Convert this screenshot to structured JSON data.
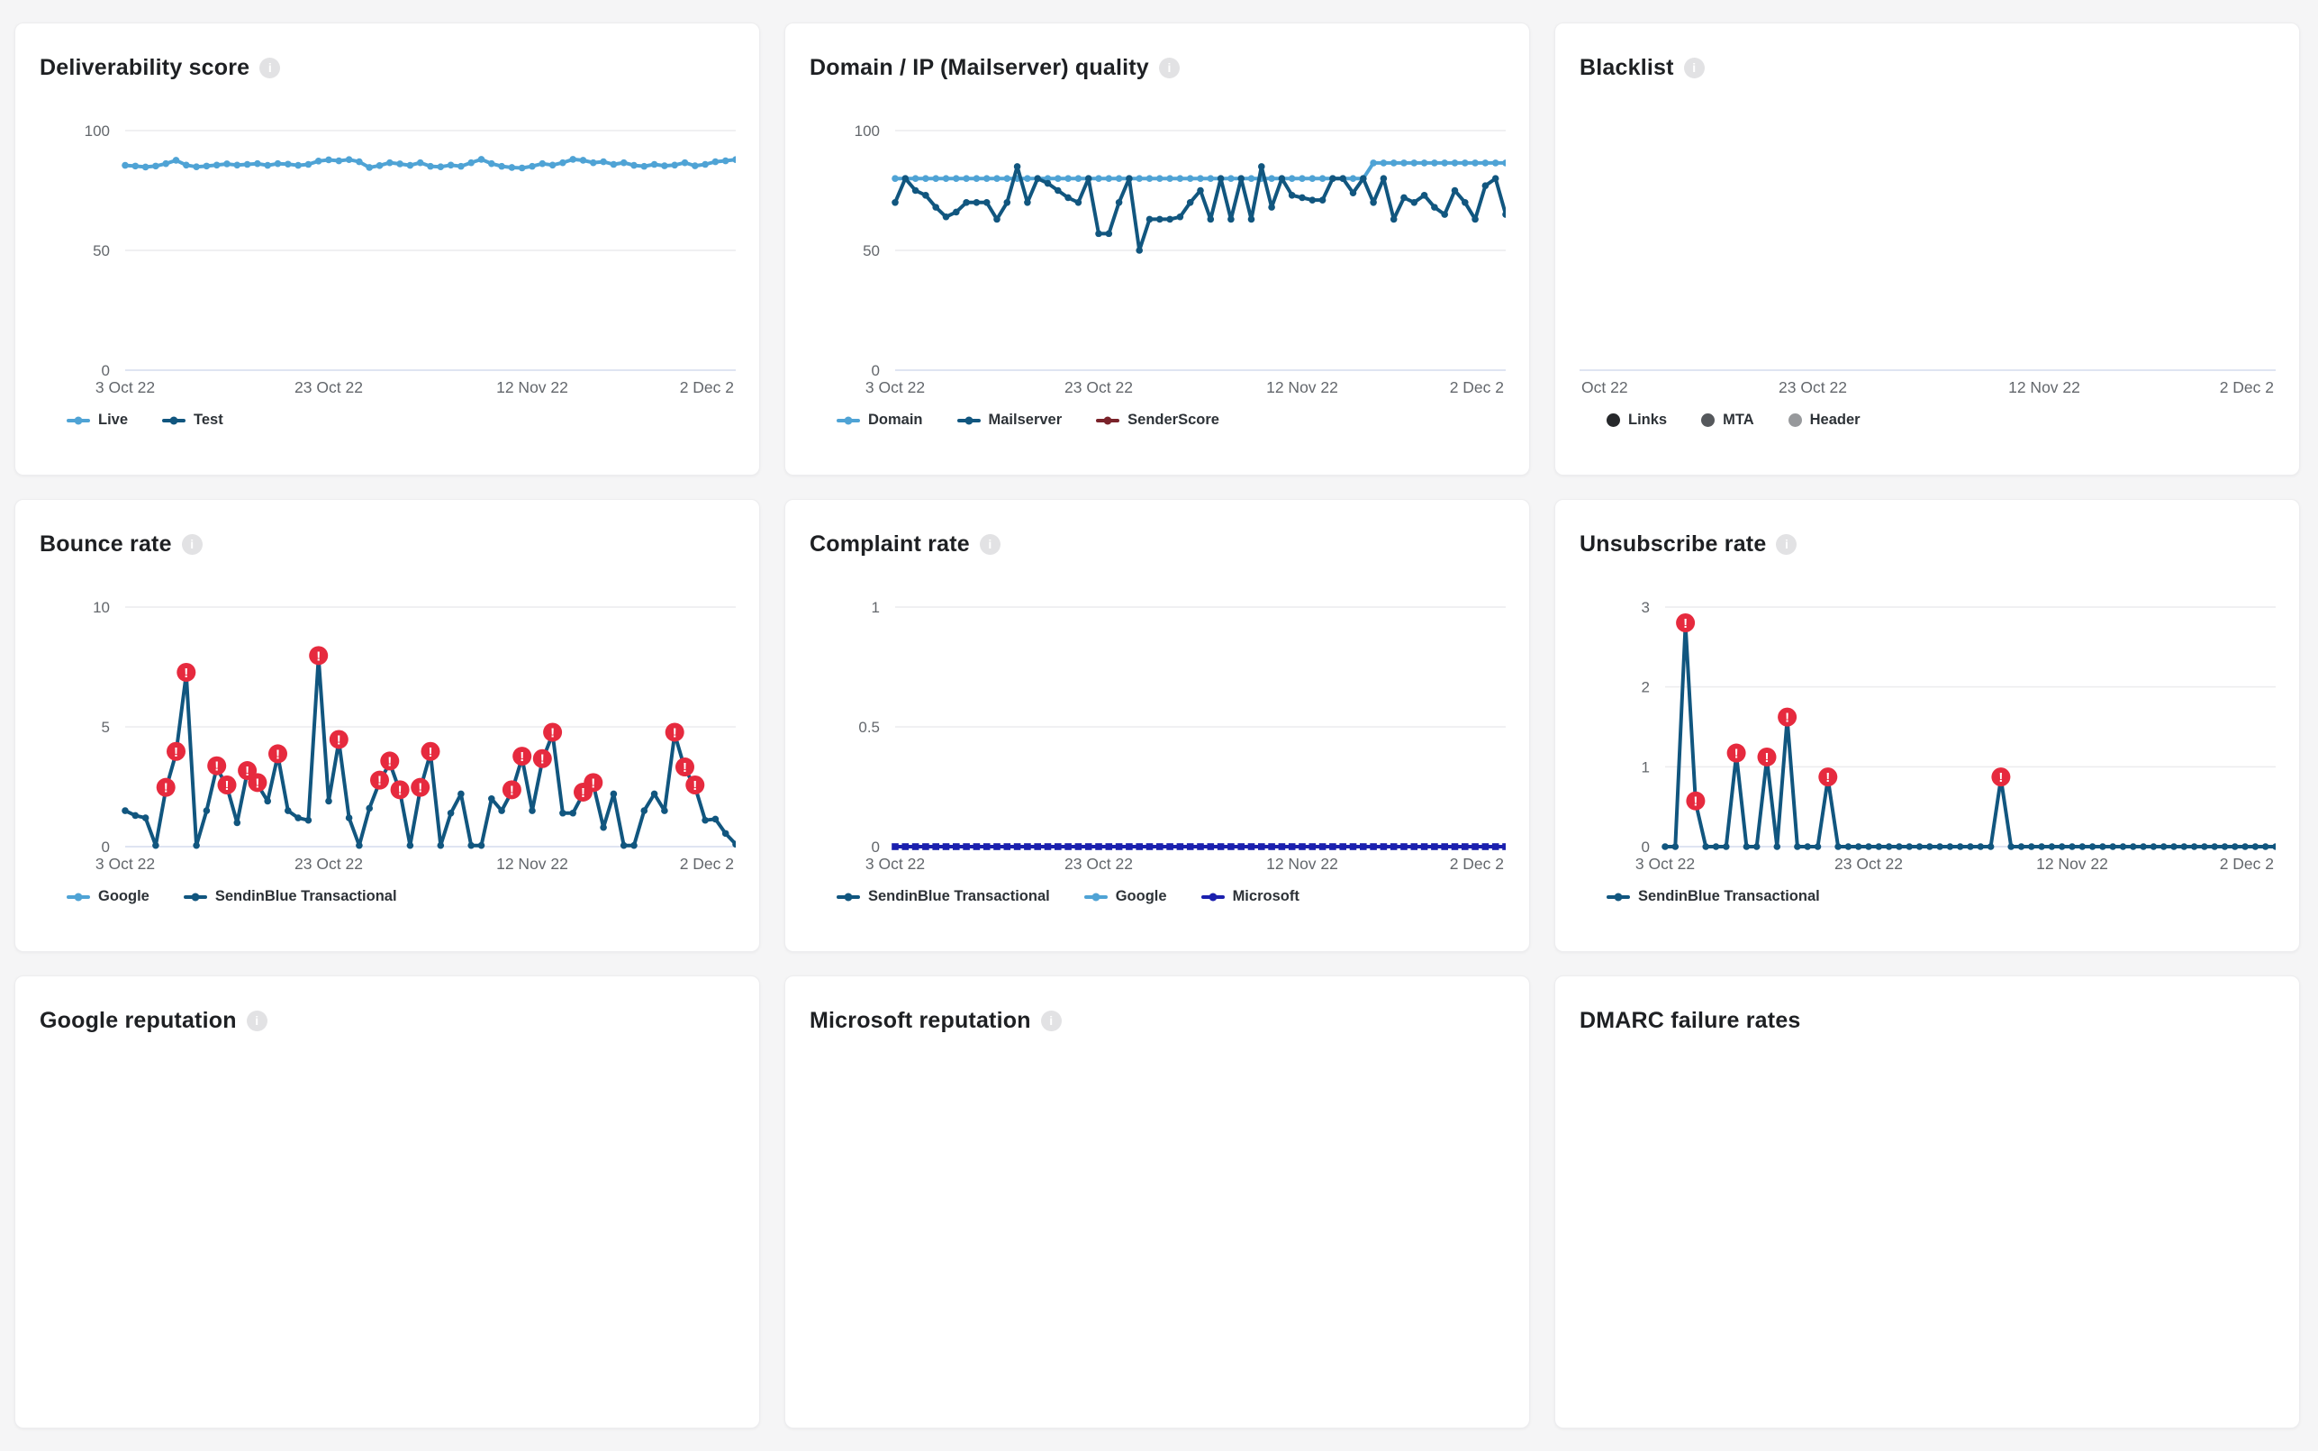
{
  "cards": [
    {
      "title": "Deliverability score",
      "info_icon": true,
      "legend": [
        {
          "label": "Live",
          "color": "#4fa3d5",
          "shape": "line"
        },
        {
          "label": "Test",
          "color": "#11567f",
          "shape": "line"
        }
      ]
    },
    {
      "title": "Domain / IP (Mailserver) quality",
      "info_icon": true,
      "legend": [
        {
          "label": "Domain",
          "color": "#4fa3d5",
          "shape": "line"
        },
        {
          "label": "Mailserver",
          "color": "#11567f",
          "shape": "line"
        },
        {
          "label": "SenderScore",
          "color": "#7a232a",
          "shape": "line"
        }
      ]
    },
    {
      "title": "Blacklist",
      "info_icon": true,
      "legend": [
        {
          "label": "Links",
          "color": "#26282b",
          "shape": "circle"
        },
        {
          "label": "MTA",
          "color": "#55585c",
          "shape": "circle"
        },
        {
          "label": "Header",
          "color": "#97999c",
          "shape": "circle"
        }
      ]
    },
    {
      "title": "Bounce rate",
      "info_icon": true,
      "legend": [
        {
          "label": "Google",
          "color": "#4fa3d5",
          "shape": "line"
        },
        {
          "label": "SendinBlue Transactional",
          "color": "#11567f",
          "shape": "line"
        }
      ]
    },
    {
      "title": "Complaint rate",
      "info_icon": true,
      "legend": [
        {
          "label": "SendinBlue Transactional",
          "color": "#11567f",
          "shape": "line"
        },
        {
          "label": "Google",
          "color": "#4fa3d5",
          "shape": "line"
        },
        {
          "label": "Microsoft",
          "color": "#1b20ae",
          "shape": "line"
        }
      ]
    },
    {
      "title": "Unsubscribe rate",
      "info_icon": true,
      "legend": [
        {
          "label": "SendinBlue Transactional",
          "color": "#11567f",
          "shape": "line"
        }
      ]
    },
    {
      "title": "Google reputation",
      "info_icon": true,
      "legend": []
    },
    {
      "title": "Microsoft reputation",
      "info_icon": true,
      "legend": []
    },
    {
      "title": "DMARC failure rates",
      "info_icon": false,
      "legend": []
    }
  ],
  "colors": {
    "alert_red": "#e62a3e",
    "grid": "#ececee",
    "baseline": "#dfe4f2",
    "axis_text": "#63676c"
  },
  "chart_data": [
    {
      "type": "line",
      "title": "Deliverability score",
      "ymax": 100,
      "y_ticks": [
        {
          "value": 100,
          "label": "100"
        },
        {
          "value": 50,
          "label": "50"
        },
        {
          "value": 0,
          "label": "0"
        }
      ],
      "x_tick_labels": [
        "3 Oct 22",
        "23 Oct 22",
        "12 Nov 22",
        "2 Dec 2"
      ],
      "series": [
        {
          "name": "Live",
          "color": "#4fa3d5",
          "marker": "dot",
          "values": [
            85.5,
            85.2,
            84.8,
            85.2,
            86.2,
            87.6,
            85.6,
            84.9,
            85.2,
            85.6,
            86.1,
            85.6,
            85.9,
            86.2,
            85.5,
            86.2,
            86.0,
            85.5,
            85.9,
            87.3,
            87.8,
            87.4,
            87.9,
            87.0,
            84.6,
            85.4,
            86.6,
            86.1,
            85.5,
            86.6,
            85.1,
            84.9,
            85.6,
            85.1,
            86.6,
            88.0,
            86.2,
            85.1,
            84.6,
            84.4,
            85.1,
            86.2,
            85.6,
            86.6,
            88.0,
            87.6,
            86.6,
            87.0,
            85.9,
            86.6,
            85.5,
            85.1,
            85.9,
            85.3,
            85.6,
            86.6,
            85.3,
            85.9,
            87.0,
            87.4,
            87.9
          ],
          "alerts": []
        },
        {
          "name": "Test",
          "color": "#11567f",
          "marker": "dot",
          "values": [],
          "alerts": []
        }
      ]
    },
    {
      "type": "line",
      "title": "Domain / IP (Mailserver) quality",
      "ymax": 100,
      "y_ticks": [
        {
          "value": 100,
          "label": "100"
        },
        {
          "value": 50,
          "label": "50"
        },
        {
          "value": 0,
          "label": "0"
        }
      ],
      "x_tick_labels": [
        "3 Oct 22",
        "23 Oct 22",
        "12 Nov 22",
        "2 Dec 2"
      ],
      "series": [
        {
          "name": "Domain",
          "color": "#4fa3d5",
          "marker": "dot",
          "values": [
            80,
            80,
            80,
            80,
            80,
            80,
            80,
            80,
            80,
            80,
            80,
            80,
            80,
            80,
            80,
            80,
            80,
            80,
            80,
            80,
            80,
            80,
            80,
            80,
            80,
            80,
            80,
            80,
            80,
            80,
            80,
            80,
            80,
            80,
            80,
            80,
            80,
            80,
            80,
            80,
            80,
            80,
            80,
            80,
            80,
            80,
            80,
            86.5,
            86.5,
            86.5,
            86.5,
            86.5,
            86.5,
            86.5,
            86.5,
            86.5,
            86.5,
            86.5,
            86.5,
            86.5,
            86.5
          ],
          "alerts": []
        },
        {
          "name": "Mailserver",
          "color": "#11567f",
          "marker": "dot",
          "values": [
            70,
            80,
            75,
            73,
            68,
            64,
            66,
            70,
            70,
            70,
            63,
            70,
            85,
            70,
            80,
            78,
            75,
            72,
            70,
            80,
            57,
            57,
            70,
            80,
            50,
            63,
            63,
            63,
            64,
            70,
            75,
            63,
            80,
            63,
            80,
            63,
            85,
            68,
            80,
            73,
            72,
            71,
            71,
            80,
            80,
            74,
            80,
            70,
            80,
            63,
            72,
            70,
            73,
            68,
            65,
            75,
            70,
            63,
            77,
            80,
            65
          ],
          "alerts": []
        },
        {
          "name": "SenderScore",
          "color": "#7a232a",
          "marker": "dot",
          "values": [],
          "alerts": []
        }
      ]
    },
    {
      "type": "line",
      "title": "Blacklist",
      "ymax": 1,
      "y_ticks": [],
      "baseline": true,
      "x_tick_labels": [
        "Oct 22",
        "23 Oct 22",
        "12 Nov 22",
        "2 Dec 2"
      ],
      "series": []
    },
    {
      "type": "line",
      "title": "Bounce rate",
      "ymax": 10,
      "y_ticks": [
        {
          "value": 10,
          "label": "10"
        },
        {
          "value": 5,
          "label": "5"
        },
        {
          "value": 0,
          "label": "0"
        }
      ],
      "x_tick_labels": [
        "3 Oct 22",
        "23 Oct 22",
        "12 Nov 22",
        "2 Dec 2"
      ],
      "series": [
        {
          "name": "Google",
          "color": "#4fa3d5",
          "marker": "dot",
          "values": [],
          "alerts": []
        },
        {
          "name": "SendinBlue Transactional",
          "color": "#11567f",
          "marker": "dot",
          "values": [
            1.5,
            1.3,
            1.2,
            0.05,
            2.4,
            3.9,
            7.2,
            0.05,
            1.5,
            3.3,
            2.5,
            1.0,
            3.1,
            2.6,
            1.9,
            3.8,
            1.5,
            1.2,
            1.1,
            7.9,
            1.9,
            4.4,
            1.2,
            0.05,
            1.6,
            2.7,
            3.5,
            2.3,
            0.05,
            2.4,
            3.9,
            0.05,
            1.4,
            2.2,
            0.05,
            0.05,
            2.0,
            1.5,
            2.3,
            3.7,
            1.5,
            3.6,
            4.7,
            1.4,
            1.4,
            2.2,
            2.6,
            0.8,
            2.2,
            0.05,
            0.05,
            1.5,
            2.2,
            1.5,
            4.7,
            3.25,
            2.5,
            1.1,
            1.15,
            0.55,
            0.1
          ],
          "alerts": [
            4,
            5,
            6,
            9,
            10,
            12,
            13,
            15,
            19,
            21,
            25,
            26,
            27,
            29,
            30,
            38,
            39,
            41,
            42,
            45,
            46,
            54,
            55,
            56
          ]
        }
      ]
    },
    {
      "type": "line",
      "title": "Complaint rate",
      "ymax": 1,
      "y_ticks": [
        {
          "value": 1,
          "label": "1"
        },
        {
          "value": 0.5,
          "label": "0.5"
        },
        {
          "value": 0,
          "label": "0"
        }
      ],
      "x_tick_labels": [
        "3 Oct 22",
        "23 Oct 22",
        "12 Nov 22",
        "2 Dec 2"
      ],
      "series": [
        {
          "name": "SendinBlue Transactional",
          "color": "#11567f",
          "marker": "dot",
          "values": [],
          "alerts": []
        },
        {
          "name": "Google",
          "color": "#4fa3d5",
          "marker": "dot",
          "values": [],
          "alerts": []
        },
        {
          "name": "Microsoft",
          "color": "#1b20ae",
          "marker": "square",
          "values": [
            0,
            0,
            0,
            0,
            0,
            0,
            0,
            0,
            0,
            0,
            0,
            0,
            0,
            0,
            0,
            0,
            0,
            0,
            0,
            0,
            0,
            0,
            0,
            0,
            0,
            0,
            0,
            0,
            0,
            0,
            0,
            0,
            0,
            0,
            0,
            0,
            0,
            0,
            0,
            0,
            0,
            0,
            0,
            0,
            0,
            0,
            0,
            0,
            0,
            0,
            0,
            0,
            0,
            0,
            0,
            0,
            0,
            0,
            0,
            0,
            0
          ],
          "alerts": []
        }
      ]
    },
    {
      "type": "line",
      "title": "Unsubscribe rate",
      "ymax": 3,
      "y_ticks": [
        {
          "value": 3,
          "label": "3"
        },
        {
          "value": 2,
          "label": "2"
        },
        {
          "value": 1,
          "label": "1"
        },
        {
          "value": 0,
          "label": "0"
        }
      ],
      "x_tick_labels": [
        "3 Oct 22",
        "23 Oct 22",
        "12 Nov 22",
        "2 Dec 2"
      ],
      "series": [
        {
          "name": "SendinBlue Transactional",
          "color": "#11567f",
          "marker": "dot",
          "values": [
            0,
            0,
            2.78,
            0.55,
            0,
            0,
            0,
            1.15,
            0,
            0,
            1.1,
            0,
            1.6,
            0,
            0,
            0,
            0.85,
            0,
            0,
            0,
            0,
            0,
            0,
            0,
            0,
            0,
            0,
            0,
            0,
            0,
            0,
            0,
            0,
            0.85,
            0,
            0,
            0,
            0,
            0,
            0,
            0,
            0,
            0,
            0,
            0,
            0,
            0,
            0,
            0,
            0,
            0,
            0,
            0,
            0,
            0,
            0,
            0,
            0,
            0,
            0,
            0
          ],
          "alerts": [
            2,
            3,
            7,
            10,
            12,
            16,
            33
          ]
        }
      ]
    }
  ]
}
